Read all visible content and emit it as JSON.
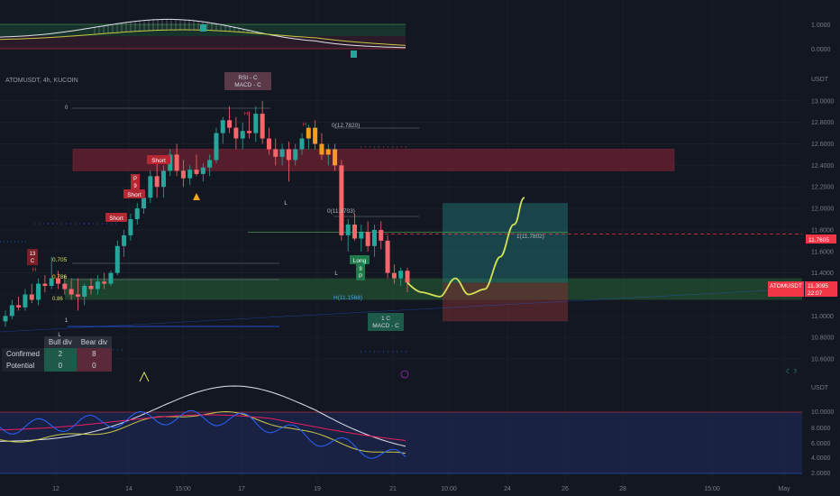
{
  "symbol_title": "ATOMUSDT, 4h, KUCOIN",
  "currency_label": "USDT",
  "price_badge": {
    "value": "11.3095",
    "countdown": "22:07",
    "label": "ATOMUSDT"
  },
  "red_line_badge": "11.7605",
  "top_panel_ticks": [
    "1.0000",
    "0.0000"
  ],
  "bottom_panel_ticks": [
    "10.0000",
    "8.0000",
    "6.0000",
    "4.0000",
    "2.0000"
  ],
  "bottom_panel_unit": "USDT",
  "annotations": {
    "rsi_macd": "RSI - C\nMACD - C",
    "macd_bottom": "1 C\nMACD - C",
    "short_1": "Short",
    "short_2": "Short",
    "short_3": "Short",
    "long": "Long",
    "p9_top": "P\n9",
    "p9_long": "9\nP",
    "c13": "13\nC",
    "H": "H",
    "L": "L",
    "fib_0_top": "0",
    "fib_0_1": "0(12.7820)",
    "fib_0_2": "0(11.9703)",
    "fib_0_3": "1(11.7802)",
    "fib_705": "0.705",
    "fib_786": "0.786",
    "fib_h": "H(11.1568)",
    "fib_1": "1",
    "fib_886": "0.86"
  },
  "table": {
    "headers": [
      "Bull div",
      "Bear div"
    ],
    "rows": [
      {
        "label": "Confirmed",
        "bull": "2",
        "bear": "8"
      },
      {
        "label": "Potential",
        "bull": "0",
        "bear": "0"
      }
    ]
  },
  "chart_data": {
    "type": "candlestick",
    "y_axis_ticks": [
      "13.0000",
      "12.8000",
      "12.6000",
      "12.4000",
      "12.2000",
      "12.0000",
      "11.8000",
      "11.6000",
      "11.4000",
      "11.2000",
      "11.0000",
      "10.8000",
      "10.6000"
    ],
    "ylim": [
      10.5,
      13.25
    ],
    "x_axis_ticks": [
      "12",
      "14",
      "15:00",
      "17",
      "19",
      "21",
      "10:00",
      "24",
      "26",
      "28",
      "15:00",
      "May"
    ],
    "candles": [
      [
        10.95,
        11.05,
        10.9,
        11.0
      ],
      [
        11.0,
        11.15,
        10.97,
        11.1
      ],
      [
        11.1,
        11.18,
        11.05,
        11.08
      ],
      [
        11.08,
        11.25,
        11.05,
        11.2
      ],
      [
        11.2,
        11.3,
        11.12,
        11.15
      ],
      [
        11.15,
        11.35,
        11.1,
        11.3
      ],
      [
        11.3,
        11.38,
        11.22,
        11.28
      ],
      [
        11.28,
        11.55,
        11.25,
        11.35
      ],
      [
        11.35,
        11.42,
        11.25,
        11.3
      ],
      [
        11.3,
        11.38,
        11.2,
        11.25
      ],
      [
        11.25,
        11.35,
        11.15,
        11.2
      ],
      [
        11.2,
        11.35,
        11.05,
        11.18
      ],
      [
        11.18,
        11.3,
        11.1,
        11.28
      ],
      [
        11.28,
        11.35,
        11.2,
        11.25
      ],
      [
        11.25,
        11.38,
        11.2,
        11.32
      ],
      [
        11.32,
        11.4,
        11.25,
        11.3
      ],
      [
        11.3,
        11.42,
        11.28,
        11.4
      ],
      [
        11.4,
        11.7,
        11.38,
        11.65
      ],
      [
        11.65,
        11.8,
        11.55,
        11.75
      ],
      [
        11.75,
        11.95,
        11.7,
        11.9
      ],
      [
        11.9,
        12.05,
        11.85,
        12.0
      ],
      [
        12.0,
        12.15,
        11.95,
        12.1
      ],
      [
        12.1,
        12.35,
        12.05,
        12.3
      ],
      [
        12.3,
        12.45,
        12.1,
        12.2
      ],
      [
        12.2,
        12.4,
        12.1,
        12.35
      ],
      [
        12.35,
        12.55,
        12.3,
        12.5
      ],
      [
        12.5,
        12.6,
        12.3,
        12.35
      ],
      [
        12.35,
        12.45,
        12.2,
        12.28
      ],
      [
        12.28,
        12.4,
        12.22,
        12.36
      ],
      [
        12.36,
        12.5,
        12.3,
        12.32
      ],
      [
        12.32,
        12.42,
        12.25,
        12.38
      ],
      [
        12.38,
        12.5,
        12.3,
        12.45
      ],
      [
        12.45,
        12.75,
        12.42,
        12.7
      ],
      [
        12.7,
        12.85,
        12.6,
        12.82
      ],
      [
        12.82,
        12.95,
        12.7,
        12.75
      ],
      [
        12.75,
        12.85,
        12.55,
        12.65
      ],
      [
        12.65,
        12.8,
        12.55,
        12.72
      ],
      [
        12.72,
        12.9,
        12.65,
        12.7
      ],
      [
        12.7,
        12.95,
        12.62,
        12.88
      ],
      [
        12.88,
        13.0,
        12.6,
        12.65
      ],
      [
        12.65,
        12.75,
        12.5,
        12.55
      ],
      [
        12.55,
        12.65,
        12.4,
        12.48
      ],
      [
        12.48,
        12.6,
        12.4,
        12.55
      ],
      [
        12.55,
        12.62,
        12.25,
        12.45
      ],
      [
        12.45,
        12.6,
        12.4,
        12.55
      ],
      [
        12.55,
        12.7,
        12.5,
        12.65
      ],
      [
        12.65,
        12.78,
        12.55,
        12.75
      ],
      [
        12.75,
        12.82,
        12.55,
        12.6
      ],
      [
        12.6,
        12.7,
        12.45,
        12.5
      ],
      [
        12.5,
        12.6,
        12.4,
        12.55
      ],
      [
        12.55,
        12.6,
        12.35,
        12.4
      ],
      [
        12.4,
        12.45,
        11.7,
        11.75
      ],
      [
        11.75,
        11.9,
        11.6,
        11.85
      ],
      [
        11.85,
        11.95,
        11.7,
        11.72
      ],
      [
        11.72,
        11.85,
        11.6,
        11.78
      ],
      [
        11.78,
        11.88,
        11.6,
        11.65
      ],
      [
        11.65,
        11.85,
        11.55,
        11.8
      ],
      [
        11.8,
        11.88,
        11.62,
        11.7
      ],
      [
        11.7,
        11.75,
        11.35,
        11.4
      ],
      [
        11.4,
        11.48,
        11.3,
        11.35
      ],
      [
        11.35,
        11.45,
        11.28,
        11.42
      ],
      [
        11.42,
        11.45,
        11.22,
        11.31
      ]
    ],
    "projection": [
      11.31,
      11.22,
      11.18,
      11.35,
      11.2,
      11.25,
      11.55,
      11.85,
      12.1
    ],
    "zones": {
      "supply": [
        12.35,
        12.55
      ],
      "demand": [
        11.15,
        11.35
      ],
      "long_tp": [
        11.31,
        12.05
      ],
      "long_sl": [
        10.95,
        11.31
      ]
    },
    "red_line": 11.7605,
    "green_line": 11.78
  }
}
